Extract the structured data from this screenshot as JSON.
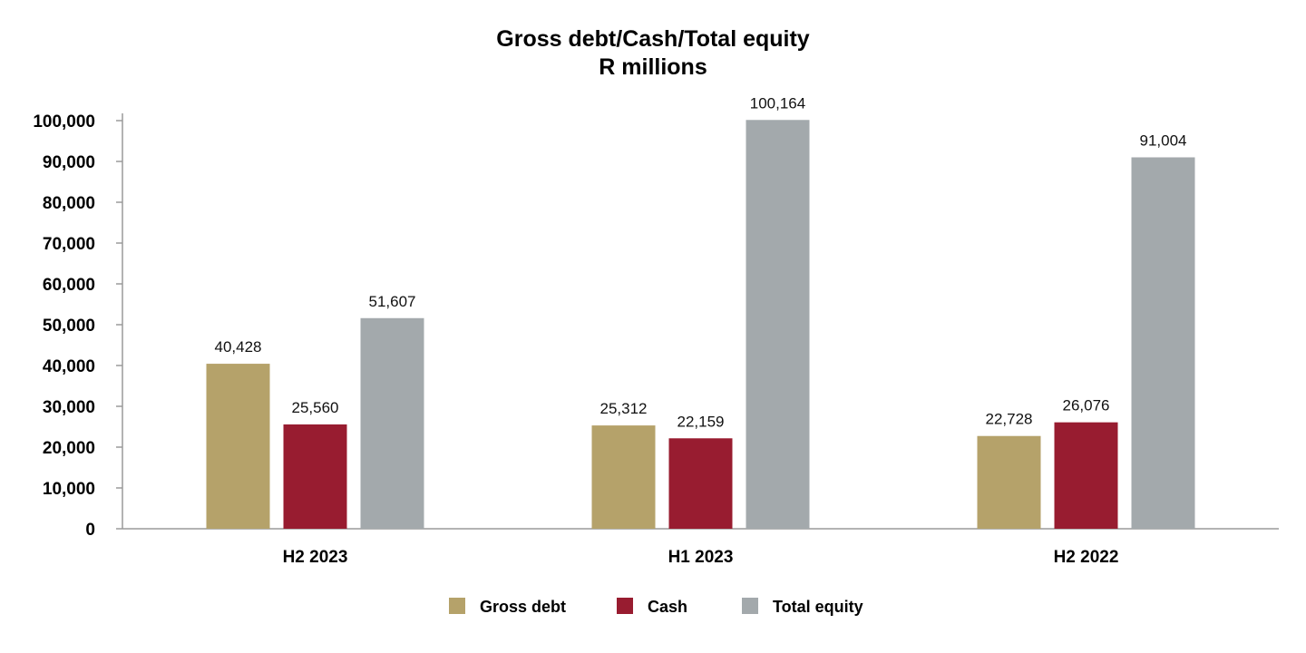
{
  "chart_data": {
    "type": "bar",
    "title": "Gross debt/Cash/Total equity",
    "subtitle": "R millions",
    "categories": [
      "H2 2023",
      "H1 2023",
      "H2 2022"
    ],
    "series": [
      {
        "name": "Gross debt",
        "color": "#b5a26a",
        "values": [
          40428,
          25312,
          22728
        ],
        "labels": [
          "40,428",
          "25,312",
          "22,728"
        ]
      },
      {
        "name": "Cash",
        "color": "#981c30",
        "values": [
          25560,
          22159,
          26076
        ],
        "labels": [
          "25,560",
          "22,159",
          "26,076"
        ]
      },
      {
        "name": "Total equity",
        "color": "#a3a9ac",
        "values": [
          51607,
          100164,
          91004
        ],
        "labels": [
          "51,607",
          "100,164",
          "91,004"
        ]
      }
    ],
    "ylim": [
      0,
      100000
    ],
    "yticks": [
      0,
      10000,
      20000,
      30000,
      40000,
      50000,
      60000,
      70000,
      80000,
      90000,
      100000
    ],
    "ytick_labels": [
      "0",
      "10,000",
      "20,000",
      "30,000",
      "40,000",
      "50,000",
      "60,000",
      "70,000",
      "80,000",
      "90,000",
      "100,000"
    ],
    "grid": false,
    "legend_position": "bottom"
  }
}
